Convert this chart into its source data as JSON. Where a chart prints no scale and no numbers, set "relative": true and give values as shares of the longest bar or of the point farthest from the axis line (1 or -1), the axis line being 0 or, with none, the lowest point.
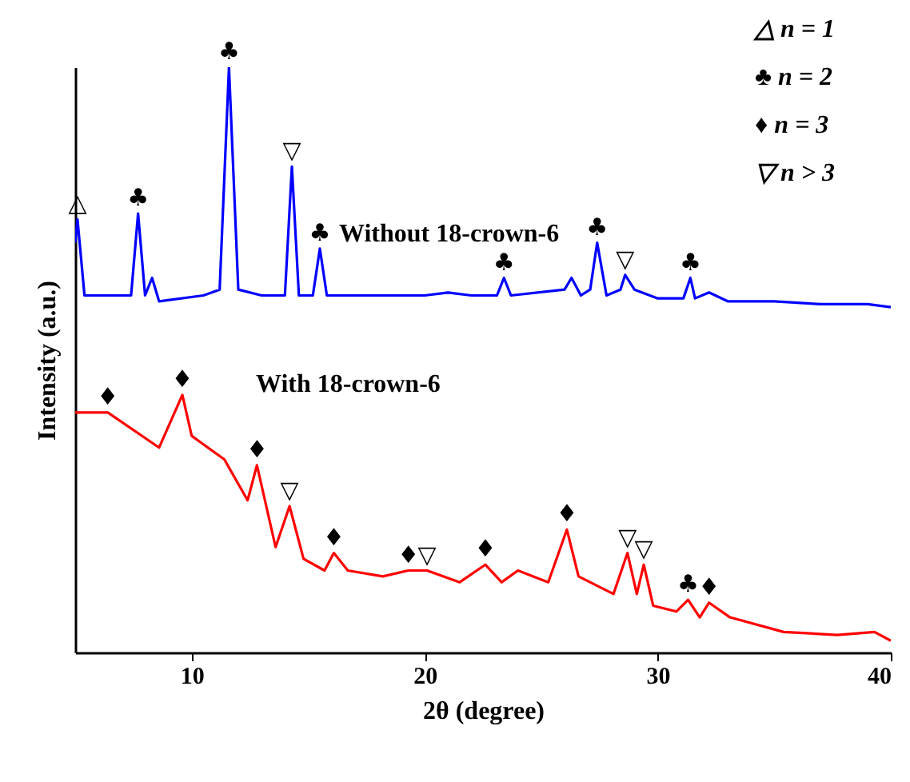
{
  "chart_data": {
    "type": "line",
    "relative": true,
    "xlabel": "2θ (degree)",
    "ylabel": "Intensity (a.u.)",
    "xlim": [
      5,
      40
    ],
    "xticks": [
      10,
      20,
      30,
      40
    ],
    "grid": false,
    "legend": false,
    "marker": "none",
    "line_style": "solid",
    "series": [
      {
        "name": "Without 18-crown-6",
        "color": "#0000ff",
        "x": [
          5.0,
          5.1,
          5.4,
          6.5,
          7.4,
          7.7,
          8.0,
          8.3,
          8.6,
          10.5,
          11.2,
          11.6,
          12.0,
          13.0,
          14.0,
          14.3,
          14.6,
          15.2,
          15.5,
          15.8,
          18,
          20,
          21,
          22,
          23.1,
          23.4,
          23.7,
          26.0,
          26.3,
          26.7,
          27.1,
          27.4,
          27.8,
          28.4,
          28.6,
          29.0,
          30,
          31.1,
          31.4,
          31.6,
          32.2,
          33,
          35,
          37,
          39,
          40
        ],
        "values": [
          0.7,
          0.74,
          0.61,
          0.61,
          0.61,
          0.75,
          0.61,
          0.64,
          0.6,
          0.61,
          0.62,
          1.0,
          0.62,
          0.61,
          0.61,
          0.83,
          0.61,
          0.61,
          0.69,
          0.61,
          0.61,
          0.61,
          0.615,
          0.61,
          0.61,
          0.64,
          0.61,
          0.62,
          0.64,
          0.61,
          0.62,
          0.7,
          0.61,
          0.62,
          0.645,
          0.62,
          0.605,
          0.605,
          0.64,
          0.605,
          0.615,
          0.6,
          0.6,
          0.595,
          0.595,
          0.59
        ]
      },
      {
        "name": "With 18-crown-6",
        "color": "#ff0000",
        "x": [
          5.0,
          6.4,
          8.6,
          9.6,
          10.0,
          11.4,
          12.4,
          12.8,
          13.6,
          14.2,
          14.8,
          15.7,
          16.1,
          16.7,
          18.2,
          19.3,
          20.1,
          21.5,
          22.6,
          23.3,
          24.0,
          25.3,
          26.1,
          26.6,
          28.1,
          28.7,
          29.1,
          29.4,
          29.8,
          30.8,
          31.3,
          31.8,
          32.2,
          33.1,
          35.4,
          37.7,
          39.3,
          40
        ],
        "values": [
          0.41,
          0.41,
          0.35,
          0.44,
          0.37,
          0.33,
          0.26,
          0.32,
          0.18,
          0.25,
          0.16,
          0.14,
          0.17,
          0.14,
          0.13,
          0.14,
          0.14,
          0.12,
          0.15,
          0.12,
          0.14,
          0.12,
          0.21,
          0.13,
          0.1,
          0.17,
          0.1,
          0.15,
          0.08,
          0.07,
          0.09,
          0.06,
          0.085,
          0.06,
          0.035,
          0.03,
          0.035,
          0.02
        ]
      }
    ],
    "annotations": [
      "△   n = 1",
      "♣   n = 2",
      "♦   n = 3",
      "▽   n > 3",
      {
        "text": "△",
        "x": 5.1,
        "y": 0.74
      },
      {
        "text": "♣",
        "x": 7.7,
        "y": 0.75
      },
      {
        "text": "♣",
        "x": 11.6,
        "y": 1.0
      },
      {
        "text": "▽",
        "x": 14.3,
        "y": 0.83
      },
      {
        "text": "♣",
        "x": 15.5,
        "y": 0.69
      },
      {
        "text": "♣",
        "x": 23.4,
        "y": 0.64
      },
      {
        "text": "♣",
        "x": 27.4,
        "y": 0.7
      },
      {
        "text": "▽",
        "x": 28.6,
        "y": 0.645
      },
      {
        "text": "♣",
        "x": 31.4,
        "y": 0.64
      },
      {
        "text": "♦",
        "x": 6.4,
        "y": 0.41
      },
      {
        "text": "♦",
        "x": 9.6,
        "y": 0.44
      },
      {
        "text": "♦",
        "x": 12.8,
        "y": 0.32
      },
      {
        "text": "▽",
        "x": 14.2,
        "y": 0.25
      },
      {
        "text": "♦",
        "x": 16.1,
        "y": 0.17
      },
      {
        "text": "♦",
        "x": 19.3,
        "y": 0.14
      },
      {
        "text": "▽",
        "x": 20.1,
        "y": 0.14
      },
      {
        "text": "♦",
        "x": 22.6,
        "y": 0.15
      },
      {
        "text": "♦",
        "x": 26.1,
        "y": 0.21
      },
      {
        "text": "▽",
        "x": 28.7,
        "y": 0.17
      },
      {
        "text": "▽",
        "x": 29.4,
        "y": 0.15
      },
      {
        "text": "♣",
        "x": 31.3,
        "y": 0.09
      },
      {
        "text": "♦",
        "x": 32.2,
        "y": 0.085
      }
    ]
  }
}
